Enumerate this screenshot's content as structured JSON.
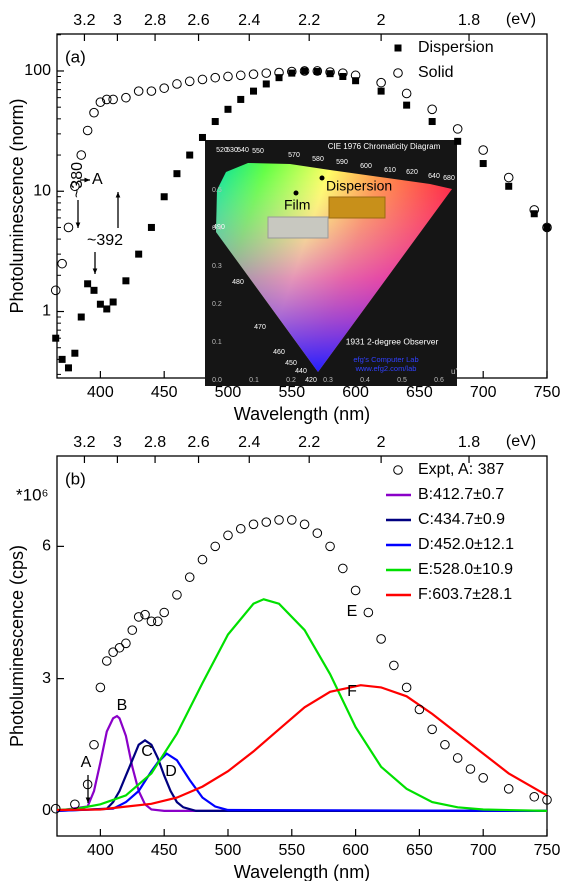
{
  "chart_data": [
    {
      "type": "scatter",
      "panel_label": "(a)",
      "ylabel": "Photoluminescence (norm)",
      "xlabel": "Wavelength (nm)",
      "x2label": "(eV)",
      "ylog": true,
      "xlim": [
        366,
        750
      ],
      "ylim": [
        0.28,
        203
      ],
      "xticks": [
        400,
        450,
        500,
        550,
        600,
        650,
        700,
        750
      ],
      "yticks": [
        1,
        10,
        100
      ],
      "x2ticks": [
        3.2,
        3,
        2.8,
        2.6,
        2.4,
        2.2,
        2,
        1.8
      ],
      "legend": "upper right",
      "x": [
        365,
        370,
        375,
        380,
        385,
        390,
        395,
        400,
        405,
        410,
        420,
        430,
        440,
        450,
        460,
        470,
        480,
        490,
        500,
        510,
        520,
        530,
        540,
        550,
        560,
        570,
        580,
        590,
        600,
        620,
        640,
        660,
        680,
        700,
        720,
        740,
        750
      ],
      "series": [
        {
          "name": "Dispersion",
          "color": "#000000",
          "marker": "square",
          "values": [
            0.6,
            0.4,
            0.34,
            0.45,
            0.9,
            1.7,
            1.5,
            1.15,
            1.05,
            1.2,
            1.8,
            3,
            5,
            9,
            14,
            20,
            28,
            38,
            48,
            58,
            68,
            78,
            88,
            96,
            100,
            99,
            95,
            90,
            83,
            68,
            52,
            38,
            26,
            17,
            11,
            6.5,
            5
          ]
        },
        {
          "name": "Solid",
          "color": "#000000",
          "marker": "open-circle",
          "values": [
            1.5,
            2.5,
            5,
            11,
            20,
            32,
            45,
            55,
            58,
            58,
            60,
            68,
            68,
            72,
            78,
            82,
            85,
            88,
            90,
            92,
            94,
            96,
            97,
            99,
            100,
            100,
            98,
            96,
            92,
            80,
            65,
            48,
            33,
            22,
            13,
            7,
            5
          ]
        }
      ],
      "annotations": [
        "~380",
        "A",
        "~392"
      ],
      "inset": {
        "title": "CIE 1976 Chromaticity Diagram",
        "observer": "1931 2-degree Observer",
        "credit": "efg's Computer Lab",
        "url": "www.efg2.com/lab",
        "film_label": "Film",
        "dispersion_label": "Dispersion",
        "locus_labels": [
          "520",
          "530",
          "540",
          "550",
          "570",
          "580",
          "590",
          "600",
          "610",
          "620",
          "640",
          "680",
          "490",
          "480",
          "470",
          "460",
          "450",
          "440",
          "420"
        ],
        "u_ticks": [
          "0.0",
          "0.1",
          "0.2",
          "0.3",
          "0.4",
          "0.5",
          "0.6"
        ],
        "v_ticks": [
          "0.5",
          "0.4",
          "0.3",
          "0.2",
          "0.1"
        ],
        "u_label": "u'"
      }
    },
    {
      "type": "line",
      "panel_label": "(b)",
      "ylabel": "Photoluminescence (cps)",
      "xlabel": "Wavelength (nm)",
      "x2label": "(eV)",
      "multiplier": "*10⁶",
      "ylog": false,
      "xlim": [
        366,
        750
      ],
      "ylim": [
        -0.57,
        8.05
      ],
      "xticks": [
        400,
        450,
        500,
        550,
        600,
        650,
        700,
        750
      ],
      "yticks": [
        0,
        3,
        6
      ],
      "x2ticks": [
        3.2,
        3,
        2.8,
        2.6,
        2.4,
        2.2,
        2,
        1.8
      ],
      "legend": "upper right",
      "series": [
        {
          "name": "Expt, A: 387",
          "color": "#000000",
          "marker": "open-circle",
          "x": [
            365,
            380,
            390,
            395,
            400,
            405,
            410,
            415,
            420,
            425,
            430,
            435,
            440,
            445,
            450,
            460,
            470,
            480,
            490,
            500,
            510,
            520,
            530,
            540,
            550,
            560,
            570,
            580,
            590,
            600,
            610,
            620,
            630,
            640,
            650,
            660,
            670,
            680,
            690,
            700,
            720,
            740,
            750
          ],
          "values": [
            0.05,
            0.15,
            0.6,
            1.5,
            2.8,
            3.4,
            3.6,
            3.7,
            3.8,
            4.1,
            4.4,
            4.45,
            4.3,
            4.3,
            4.5,
            4.9,
            5.3,
            5.7,
            6.0,
            6.25,
            6.4,
            6.5,
            6.55,
            6.6,
            6.6,
            6.5,
            6.3,
            6.0,
            5.5,
            5.0,
            4.5,
            3.9,
            3.3,
            2.8,
            2.3,
            1.85,
            1.5,
            1.2,
            0.95,
            0.75,
            0.5,
            0.32,
            0.25
          ]
        },
        {
          "name": "B:412.7±0.7",
          "color": "#8a00c8",
          "x": [
            366,
            390,
            395,
            400,
            405,
            410,
            413,
            415,
            420,
            425,
            430,
            435,
            440,
            450,
            750
          ],
          "values": [
            0,
            0.1,
            0.45,
            1.1,
            1.8,
            2.1,
            2.15,
            2.1,
            1.7,
            1.0,
            0.45,
            0.15,
            0.03,
            0,
            0
          ]
        },
        {
          "name": "C:434.7±0.9",
          "color": "#000080",
          "x": [
            366,
            405,
            410,
            415,
            420,
            425,
            430,
            435,
            440,
            445,
            450,
            455,
            460,
            465,
            475,
            750
          ],
          "values": [
            0,
            0.05,
            0.2,
            0.45,
            0.8,
            1.15,
            1.5,
            1.6,
            1.5,
            1.2,
            0.8,
            0.45,
            0.2,
            0.08,
            0,
            0
          ]
        },
        {
          "name": "D:452.0±12.1",
          "color": "#0000ff",
          "x": [
            366,
            410,
            420,
            430,
            440,
            445,
            452,
            460,
            470,
            480,
            490,
            500,
            750
          ],
          "values": [
            0,
            0.05,
            0.2,
            0.45,
            0.9,
            1.1,
            1.3,
            1.15,
            0.7,
            0.3,
            0.1,
            0.02,
            0
          ]
        },
        {
          "name": "E:528.0±10.9",
          "color": "#00e000",
          "x": [
            366,
            380,
            400,
            420,
            440,
            460,
            480,
            500,
            520,
            528,
            540,
            560,
            580,
            600,
            620,
            640,
            660,
            680,
            700,
            750
          ],
          "values": [
            0.02,
            0.04,
            0.15,
            0.35,
            0.85,
            1.75,
            2.9,
            4.0,
            4.7,
            4.8,
            4.7,
            4.1,
            3.1,
            1.9,
            1.0,
            0.5,
            0.2,
            0.08,
            0.03,
            0
          ]
        },
        {
          "name": "F:603.7±28.1",
          "color": "#ff0000",
          "x": [
            366,
            400,
            440,
            460,
            480,
            500,
            520,
            540,
            560,
            580,
            604,
            620,
            640,
            660,
            680,
            700,
            720,
            750
          ],
          "values": [
            0.02,
            0.03,
            0.16,
            0.3,
            0.55,
            0.9,
            1.35,
            1.85,
            2.35,
            2.7,
            2.85,
            2.8,
            2.6,
            2.2,
            1.75,
            1.3,
            0.85,
            0.35
          ]
        }
      ],
      "peak_labels": [
        "A",
        "B",
        "C",
        "D",
        "E",
        "F"
      ]
    }
  ]
}
